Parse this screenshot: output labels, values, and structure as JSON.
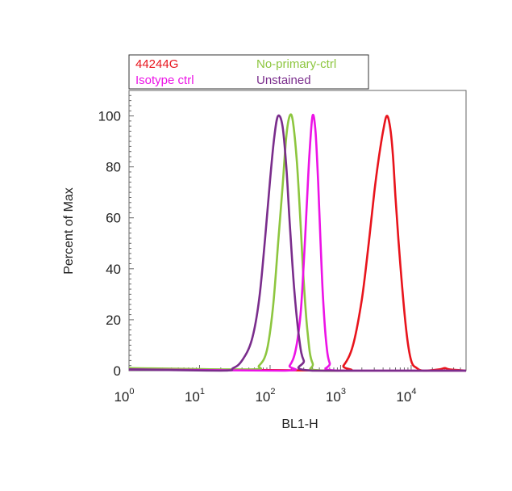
{
  "chart_data": {
    "type": "line",
    "title": "",
    "xlabel": "BL1-H",
    "ylabel": "Percent of Max",
    "x_scale": "log",
    "xlim": [
      1,
      60000
    ],
    "ylim": [
      0,
      110
    ],
    "grid": false,
    "legend_position": "top",
    "x_ticks": [
      {
        "value": 1,
        "base": "10",
        "exp": "0"
      },
      {
        "value": 10,
        "base": "10",
        "exp": "1"
      },
      {
        "value": 100,
        "base": "10",
        "exp": "2"
      },
      {
        "value": 1000,
        "base": "10",
        "exp": "3"
      },
      {
        "value": 10000,
        "base": "10",
        "exp": "4"
      }
    ],
    "y_ticks": [
      0,
      20,
      40,
      60,
      80,
      100
    ],
    "series": [
      {
        "name": "44244G",
        "color": "#e8141c",
        "x": [
          1,
          800,
          1100,
          1500,
          2000,
          2500,
          3000,
          3500,
          4000,
          4500,
          5000,
          5500,
          6000,
          7000,
          8500,
          10000,
          12000,
          15000,
          25000,
          30000,
          35000,
          60000
        ],
        "y": [
          0.8,
          0,
          2,
          10,
          28,
          50,
          70,
          84,
          94,
          100,
          96,
          85,
          68,
          42,
          16,
          4,
          1,
          0,
          0.5,
          1,
          0.5,
          0
        ]
      },
      {
        "name": "No-primary-ctrl",
        "color": "#8dc63f",
        "x": [
          1,
          50,
          70,
          90,
          110,
          130,
          150,
          170,
          190,
          210,
          240,
          270,
          300,
          340,
          400,
          600,
          60000
        ],
        "y": [
          1,
          0.5,
          2,
          8,
          25,
          50,
          72,
          92,
          100,
          98,
          82,
          58,
          35,
          15,
          3,
          0,
          0
        ]
      },
      {
        "name": "Isotype ctrl",
        "color": "#ec13e6",
        "x": [
          1,
          150,
          190,
          230,
          270,
          300,
          330,
          360,
          400,
          440,
          480,
          520,
          560,
          620,
          700,
          900,
          60000
        ],
        "y": [
          0.5,
          0,
          2,
          8,
          22,
          42,
          64,
          84,
          100,
          94,
          74,
          50,
          30,
          12,
          3,
          0,
          0
        ]
      },
      {
        "name": "Unstained",
        "color": "#7a2d8c",
        "x": [
          1,
          20,
          30,
          40,
          55,
          70,
          85,
          100,
          115,
          130,
          150,
          170,
          190,
          220,
          260,
          300,
          400,
          60000
        ],
        "y": [
          0.5,
          0,
          1,
          4,
          12,
          28,
          52,
          75,
          92,
          100,
          96,
          80,
          58,
          32,
          12,
          4,
          0,
          0
        ]
      }
    ]
  }
}
